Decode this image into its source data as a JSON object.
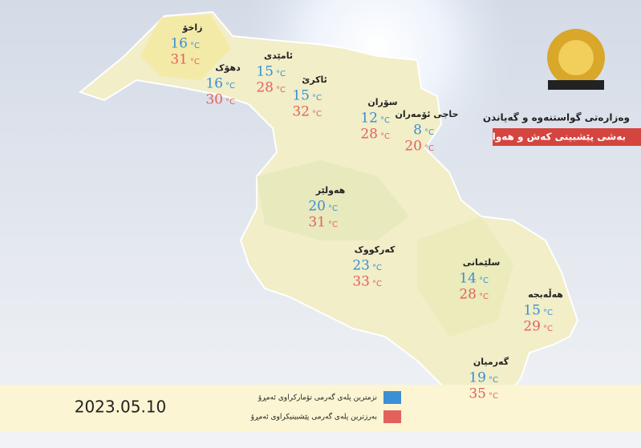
{
  "header": {
    "title": "وەزارەتی گواستنەوە و گەیاندن",
    "subtitle": "بەشی پێشبینی کەش و هەوا"
  },
  "unit": "°C",
  "min_color": "#3b8fd4",
  "max_color": "#e2625b",
  "cities": [
    {
      "name": "زاخۆ",
      "min": 16,
      "max": 31
    },
    {
      "name": "دهۆک",
      "min": 16,
      "max": 30
    },
    {
      "name": "ئامێدی",
      "min": 15,
      "max": 28
    },
    {
      "name": "ئاکرێ",
      "min": 15,
      "max": 32
    },
    {
      "name": "سۆران",
      "min": 12,
      "max": 28
    },
    {
      "name": "حاجی ئۆمەران",
      "min": 8,
      "max": 20
    },
    {
      "name": "هەولێر",
      "min": 20,
      "max": 31
    },
    {
      "name": "کەرکووک",
      "min": 23,
      "max": 33
    },
    {
      "name": "سلێمانی",
      "min": 14,
      "max": 28
    },
    {
      "name": "هەڵەبجە",
      "min": 15,
      "max": 29
    },
    {
      "name": "گەرمیان",
      "min": 19,
      "max": 35
    }
  ],
  "legend": {
    "min_label": "نزمترین پلەی گەرمی تۆمارکراوی ئەمڕۆ",
    "max_label": "بەرزترین پلەی گەرمی پێشبینیکراوی ئەمڕۆ"
  },
  "date": "2023.05.10"
}
